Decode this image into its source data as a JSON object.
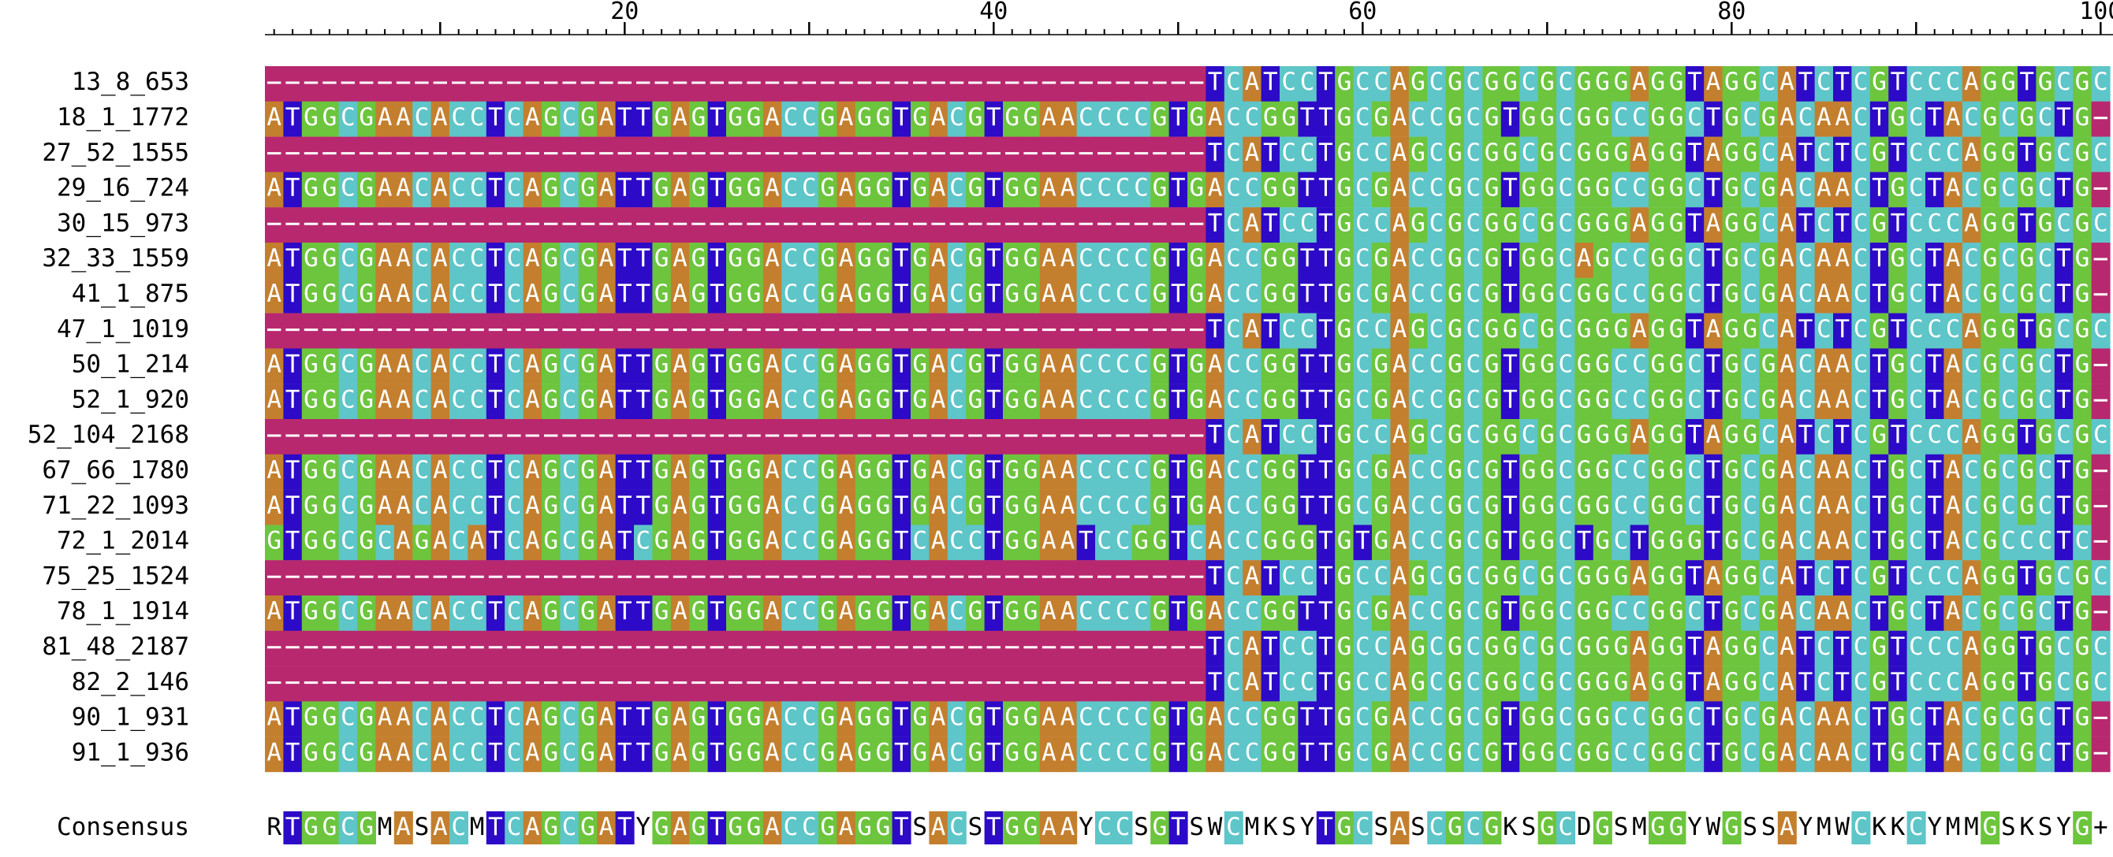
{
  "ruler": {
    "ticks": [
      20,
      40,
      60,
      80,
      100
    ]
  },
  "sequences": [
    {
      "name": "13_8_653",
      "seq": "---------------------------------------------------TCATCCTGCCAGCGCGGCGCGGGAGGTAGGCATCTCGTCCCAGGTGCGC"
    },
    {
      "name": "18_1_1772",
      "seq": "ATGGCGAACACCTCAGCGATTGAGTGGACCGAGGTGACGTGGAACCCCGTGACCGGTTGCGACCGCGTGGCGGCCGGCTGCGACAACTGCTACGCGCTG-"
    },
    {
      "name": "27_52_1555",
      "seq": "---------------------------------------------------TCATCCTGCCAGCGCGGCGCGGGAGGTAGGCATCTCGTCCCAGGTGCGC"
    },
    {
      "name": "29_16_724",
      "seq": "ATGGCGAACACCTCAGCGATTGAGTGGACCGAGGTGACGTGGAACCCCGTGACCGGTTGCGACCGCGTGGCGGCCGGCTGCGACAACTGCTACGCGCTG-"
    },
    {
      "name": "30_15_973",
      "seq": "---------------------------------------------------TCATCCTGCCAGCGCGGCGCGGGAGGTAGGCATCTCGTCCCAGGTGCGC"
    },
    {
      "name": "32_33_1559",
      "seq": "ATGGCGAACACCTCAGCGATTGAGTGGACCGAGGTGACGTGGAACCCCGTGACCGGTTGCGACCGCGTGGCAGCCGGCTGCGACAACTGCTACGCGCTG-"
    },
    {
      "name": "41_1_875",
      "seq": "ATGGCGAACACCTCAGCGATTGAGTGGACCGAGGTGACGTGGAACCCCGTGACCGGTTGCGACCGCGTGGCGGCCGGCTGCGACAACTGCTACGCGCTG-"
    },
    {
      "name": "47_1_1019",
      "seq": "---------------------------------------------------TCATCCTGCCAGCGCGGCGCGGGAGGTAGGCATCTCGTCCCAGGTGCGC"
    },
    {
      "name": "50_1_214",
      "seq": "ATGGCGAACACCTCAGCGATTGAGTGGACCGAGGTGACGTGGAACCCCGTGACCGGTTGCGACCGCGTGGCGGCCGGCTGCGACAACTGCTACGCGCTG-"
    },
    {
      "name": "52_1_920",
      "seq": "ATGGCGAACACCTCAGCGATTGAGTGGACCGAGGTGACGTGGAACCCCGTGACCGGTTGCGACCGCGTGGCGGCCGGCTGCGACAACTGCTACGCGCTG-"
    },
    {
      "name": "52_104_2168",
      "seq": "---------------------------------------------------TCATCCTGCCAGCGCGGCGCGGGAGGTAGGCATCTCGTCCCAGGTGCGC"
    },
    {
      "name": "67_66_1780",
      "seq": "ATGGCGAACACCTCAGCGATTGAGTGGACCGAGGTGACGTGGAACCCCGTGACCGGTTGCGACCGCGTGGCGGCCGGCTGCGACAACTGCTACGCGCTG-"
    },
    {
      "name": "71_22_1093",
      "seq": "ATGGCGAACACCTCAGCGATTGAGTGGACCGAGGTGACGTGGAACCCCGTGACCGGTTGCGACCGCGTGGCGGCCGGCTGCGACAACTGCTACGCGCTG-"
    },
    {
      "name": "72_1_2014",
      "seq": "GTGGCGCAGACATCAGCGATCGAGTGGACCGAGGTCACCTGGAATCCGGTCACCGGGTGTGACCGCGTGGCTGCTGGGTGCGACAACTGCTACGCCCTC-"
    },
    {
      "name": "75_25_1524",
      "seq": "---------------------------------------------------TCATCCTGCCAGCGCGGCGCGGGAGGTAGGCATCTCGTCCCAGGTGCGC"
    },
    {
      "name": "78_1_1914",
      "seq": "ATGGCGAACACCTCAGCGATTGAGTGGACCGAGGTGACGTGGAACCCCGTGACCGGTTGCGACCGCGTGGCGGCCGGCTGCGACAACTGCTACGCGCTG-"
    },
    {
      "name": "81_48_2187",
      "seq": "---------------------------------------------------TCATCCTGCCAGCGCGGCGCGGGAGGTAGGCATCTCGTCCCAGGTGCGC"
    },
    {
      "name": "82_2_146",
      "seq": "---------------------------------------------------TCATCCTGCCAGCGCGGCGCGGGAGGTAGGCATCTCGTCCCAGGTGCGC"
    },
    {
      "name": "90_1_931",
      "seq": "ATGGCGAACACCTCAGCGATTGAGTGGACCGAGGTGACGTGGAACCCCGTGACCGGTTGCGACCGCGTGGCGGCCGGCTGCGACAACTGCTACGCGCTG-"
    },
    {
      "name": "91_1_936",
      "seq": "ATGGCGAACACCTCAGCGATTGAGTGGACCGAGGTGACGTGGAACCCCGTGACCGGTTGCGACCGCGTGGCGGCCGGCTGCGACAACTGCTACGCGCTG-"
    }
  ],
  "consensus": {
    "name": "Consensus",
    "seq": "RTGGCGMASACMTCAGCGATYGAGTGGACCGAGGTSACSTGGAAYCCSGTSWCMKSYTGCSASCGCGKSGCDGSMGGYWGSSAYMWCKKCYMMGSKSYG+-"
  },
  "colors": {
    "A": "#c47f2e",
    "C": "#5ec5c8",
    "G": "#6cc53d",
    "T": "#2c0ac7",
    "gap": "#b8286f",
    "background": "#ffffff",
    "text": "#ffffff",
    "gap_line": "#ffffff",
    "consensus_text": "#000000",
    "label_text": "#000000"
  }
}
